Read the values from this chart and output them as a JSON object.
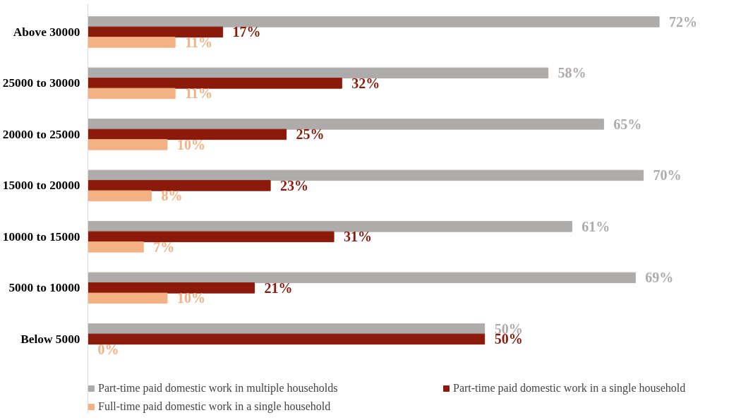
{
  "chart_data": {
    "type": "bar",
    "orientation": "horizontal",
    "categories": [
      "Above 30000",
      "25000 to 30000",
      "20000 to 25000",
      "15000 to 20000",
      "10000 to 15000",
      "5000 to 10000",
      "Below 5000"
    ],
    "tick_labels": "y",
    "grid": false,
    "legend": "bottom",
    "series": [
      {
        "name": "Part-time paid domestic work in multiple households",
        "color": "#aeabab",
        "values": [
          72,
          58,
          65,
          70,
          61,
          69,
          50
        ],
        "value_labels": [
          "72%",
          "58%",
          "65%",
          "70%",
          "61%",
          "69%",
          "50%"
        ]
      },
      {
        "name": "Part-time paid domestic work in a single household",
        "color": "#8b1a0a",
        "values": [
          17,
          32,
          25,
          23,
          31,
          21,
          50
        ],
        "value_labels": [
          "17%",
          "32%",
          "25%",
          "23%",
          "31%",
          "21%",
          "50%"
        ]
      },
      {
        "name": "Full-time paid domestic work in a single household",
        "color": "#f4b183",
        "values": [
          11,
          11,
          10,
          8,
          7,
          10,
          0
        ],
        "value_labels": [
          "11%",
          "11%",
          "10%",
          "8%",
          "7%",
          "10%",
          "0%"
        ]
      }
    ]
  }
}
